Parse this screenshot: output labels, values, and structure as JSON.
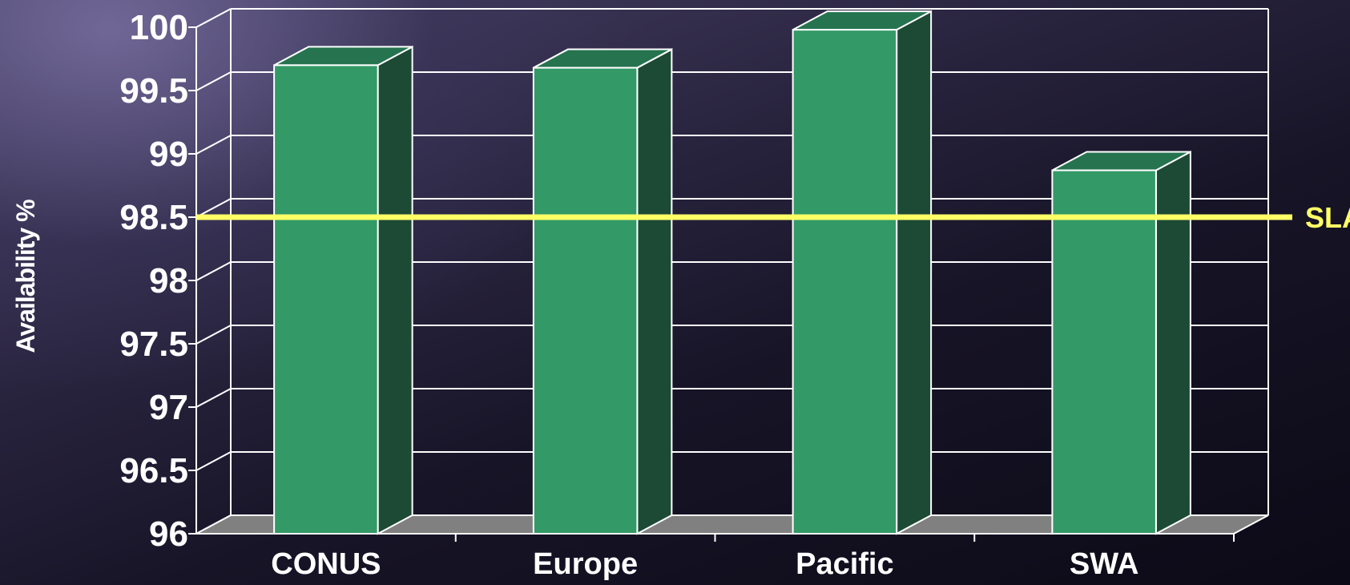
{
  "chart_data": {
    "type": "bar",
    "categories": [
      "CONUS",
      "Europe",
      "Pacific",
      "SWA"
    ],
    "values": [
      99.7,
      99.68,
      99.98,
      98.87
    ],
    "ylabel": "Availability %",
    "xlabel": "",
    "ylim": [
      96,
      100
    ],
    "yticks": [
      "96",
      "96.5",
      "97",
      "97.5",
      "98",
      "98.5",
      "99",
      "99.5",
      "100"
    ],
    "reference_line": {
      "label": "SLA",
      "value": 98.5
    },
    "grid": true,
    "colors": {
      "bar_front": "#339966",
      "bar_top": "#267350",
      "bar_side": "#1c4a34",
      "floor": "#808080",
      "reference_line": "#ffff66",
      "text": "#ffffff"
    }
  }
}
